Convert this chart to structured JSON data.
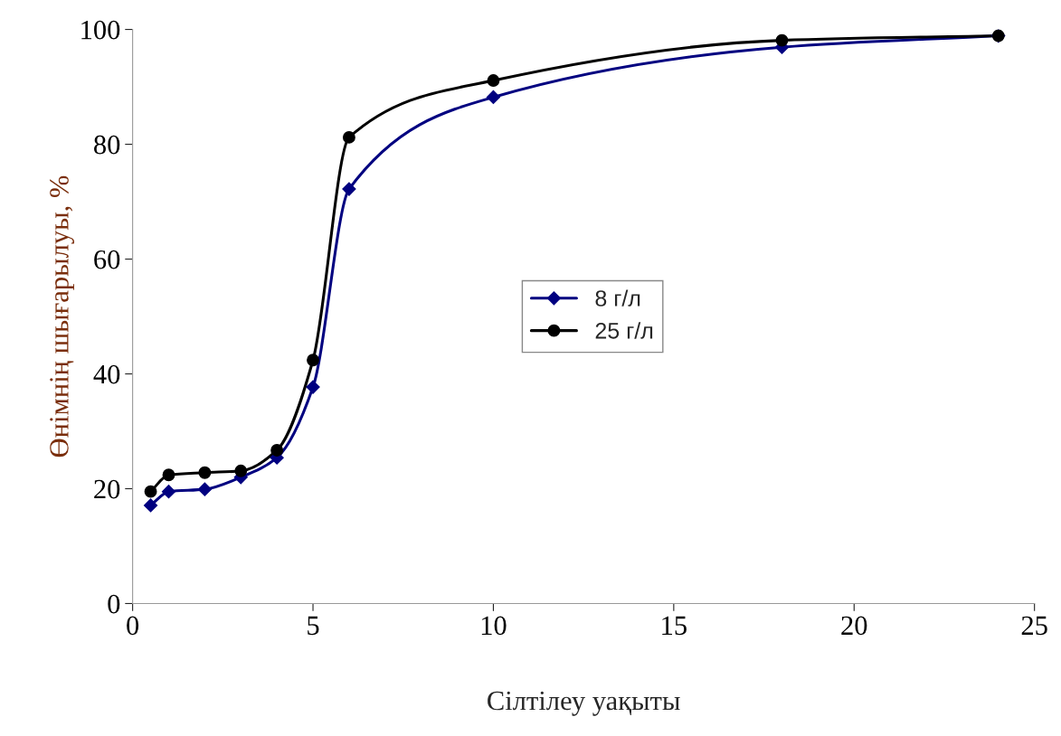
{
  "chart_data": {
    "type": "line",
    "xlabel": "Сілтілеу уақыты",
    "ylabel": "Өнімнің шығарылуы, %",
    "x": [
      0.5,
      1,
      2,
      3,
      4,
      5,
      6,
      10,
      18,
      24
    ],
    "series": [
      {
        "name": "8 г/л",
        "color": "#000080",
        "marker": "diamond",
        "values": [
          17.1,
          19.5,
          19.9,
          22.0,
          25.4,
          37.7,
          72.2,
          88.2,
          96.9,
          98.9
        ]
      },
      {
        "name": "25 г/л",
        "color": "#000000",
        "marker": "circle",
        "values": [
          19.5,
          22.4,
          22.8,
          23.1,
          26.7,
          42.4,
          81.2,
          91.1,
          98.1,
          98.9
        ]
      }
    ],
    "xlim": [
      0,
      25
    ],
    "xticks": [
      0,
      5,
      10,
      15,
      20,
      25
    ],
    "ylim": [
      0,
      100
    ],
    "yticks": [
      0,
      20,
      40,
      60,
      80,
      100
    ],
    "grid": false,
    "legend": "center",
    "line_style": "solid"
  }
}
